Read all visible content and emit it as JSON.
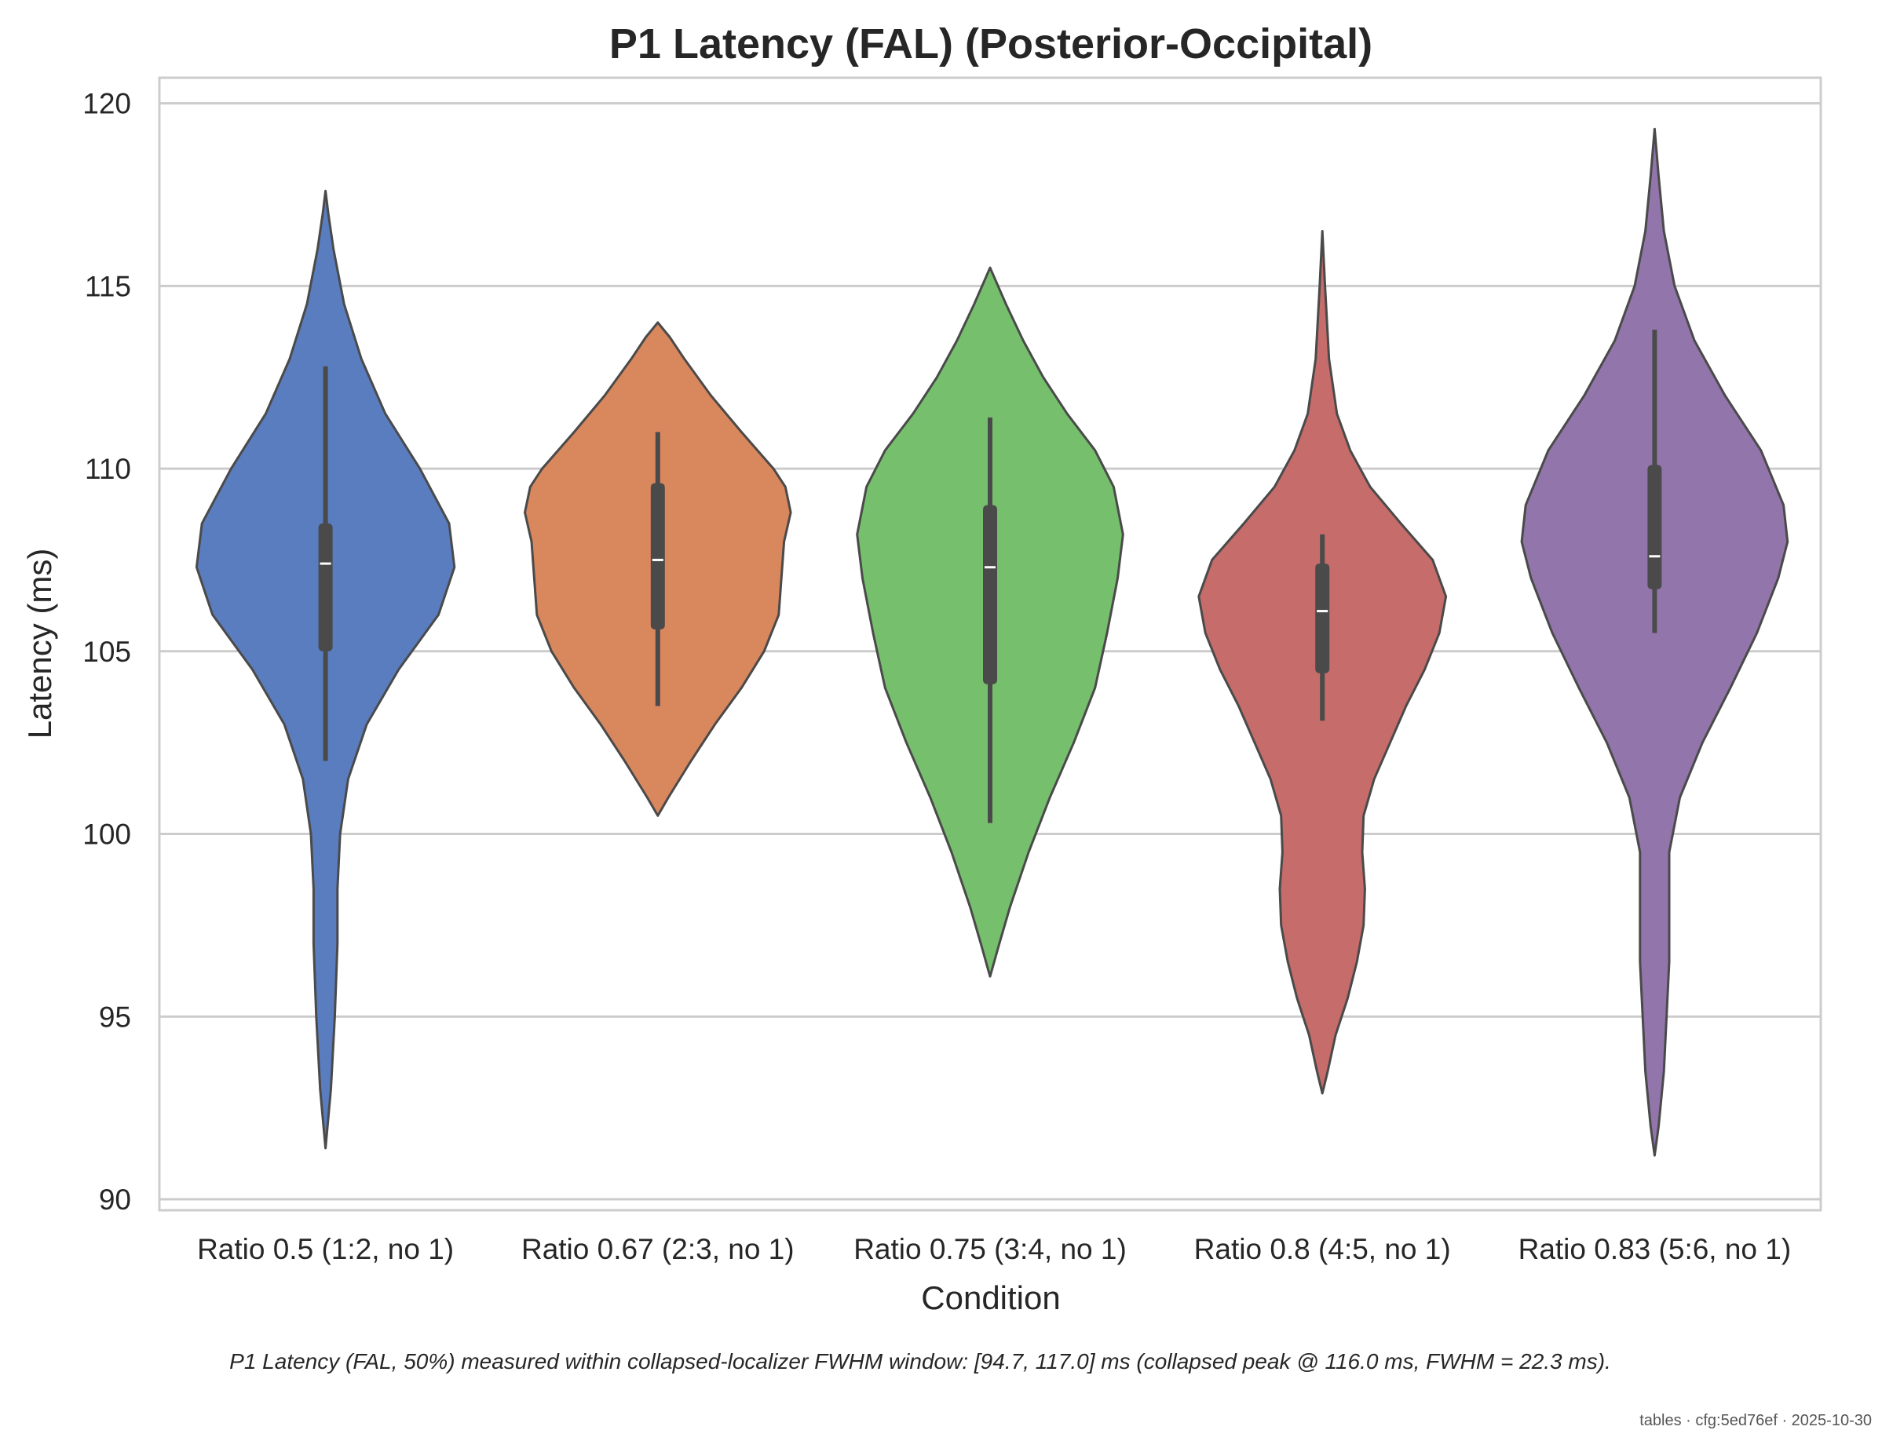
{
  "chart_data": {
    "type": "violin",
    "title": "P1 Latency (FAL) (Posterior-Occipital)",
    "xlabel": "Condition",
    "ylabel": "Latency (ms)",
    "ylim": [
      89.7,
      120.7
    ],
    "yticks": [
      90,
      95,
      100,
      105,
      110,
      115,
      120
    ],
    "grid": "horizontal",
    "categories": [
      "Ratio 0.5 (1:2, no 1)",
      "Ratio 0.67 (2:3, no 1)",
      "Ratio 0.75 (3:4, no 1)",
      "Ratio 0.8 (4:5, no 1)",
      "Ratio 0.83 (5:6, no 1)"
    ],
    "series": [
      {
        "color": "#5a7dc0",
        "kde_min": 91.4,
        "kde_max": 117.6,
        "whisker_low": 102.0,
        "q1": 105.0,
        "median": 107.4,
        "q3": 108.5,
        "whisker_high": 112.8,
        "profile": [
          [
            91.4,
            0.0
          ],
          [
            93.0,
            0.04
          ],
          [
            95.0,
            0.07
          ],
          [
            97.0,
            0.09
          ],
          [
            98.5,
            0.09
          ],
          [
            100.0,
            0.11
          ],
          [
            101.5,
            0.17
          ],
          [
            103.0,
            0.31
          ],
          [
            104.5,
            0.55
          ],
          [
            106.0,
            0.85
          ],
          [
            107.3,
            0.97
          ],
          [
            108.5,
            0.93
          ],
          [
            110.0,
            0.71
          ],
          [
            111.5,
            0.45
          ],
          [
            113.0,
            0.27
          ],
          [
            114.5,
            0.14
          ],
          [
            116.0,
            0.06
          ],
          [
            117.0,
            0.02
          ],
          [
            117.6,
            0.0
          ]
        ]
      },
      {
        "color": "#d9875d",
        "kde_min": 100.5,
        "kde_max": 114.0,
        "whisker_low": 103.5,
        "q1": 105.6,
        "median": 107.5,
        "q3": 109.6,
        "whisker_high": 111.0,
        "profile": [
          [
            100.5,
            0.0
          ],
          [
            101.0,
            0.08
          ],
          [
            102.0,
            0.25
          ],
          [
            103.0,
            0.43
          ],
          [
            104.0,
            0.63
          ],
          [
            105.0,
            0.8
          ],
          [
            106.0,
            0.91
          ],
          [
            107.0,
            0.93
          ],
          [
            108.0,
            0.95
          ],
          [
            108.8,
            1.0
          ],
          [
            109.5,
            0.96
          ],
          [
            110.0,
            0.87
          ],
          [
            111.0,
            0.63
          ],
          [
            112.0,
            0.4
          ],
          [
            113.0,
            0.2
          ],
          [
            113.6,
            0.09
          ],
          [
            114.0,
            0.0
          ]
        ]
      },
      {
        "color": "#76c06d",
        "kde_min": 96.1,
        "kde_max": 115.5,
        "whisker_low": 100.3,
        "q1": 104.1,
        "median": 107.3,
        "q3": 109.0,
        "whisker_high": 111.4,
        "profile": [
          [
            96.1,
            0.0
          ],
          [
            97.0,
            0.07
          ],
          [
            98.0,
            0.15
          ],
          [
            99.5,
            0.29
          ],
          [
            101.0,
            0.45
          ],
          [
            102.5,
            0.63
          ],
          [
            104.0,
            0.79
          ],
          [
            105.5,
            0.88
          ],
          [
            107.0,
            0.96
          ],
          [
            108.2,
            1.0
          ],
          [
            109.5,
            0.93
          ],
          [
            110.5,
            0.79
          ],
          [
            111.5,
            0.58
          ],
          [
            112.5,
            0.4
          ],
          [
            113.5,
            0.25
          ],
          [
            114.5,
            0.12
          ],
          [
            115.5,
            0.0
          ]
        ]
      },
      {
        "color": "#c66c6b",
        "kde_min": 92.9,
        "kde_max": 116.5,
        "whisker_low": 103.1,
        "q1": 104.4,
        "median": 106.1,
        "q3": 107.4,
        "whisker_high": 108.2,
        "profile": [
          [
            92.9,
            0.0
          ],
          [
            93.5,
            0.04
          ],
          [
            94.5,
            0.1
          ],
          [
            95.5,
            0.19
          ],
          [
            96.5,
            0.26
          ],
          [
            97.5,
            0.31
          ],
          [
            98.5,
            0.32
          ],
          [
            99.5,
            0.3
          ],
          [
            100.5,
            0.31
          ],
          [
            101.5,
            0.39
          ],
          [
            102.5,
            0.51
          ],
          [
            103.5,
            0.63
          ],
          [
            104.5,
            0.77
          ],
          [
            105.5,
            0.88
          ],
          [
            106.5,
            0.93
          ],
          [
            107.5,
            0.83
          ],
          [
            108.5,
            0.59
          ],
          [
            109.5,
            0.36
          ],
          [
            110.5,
            0.21
          ],
          [
            111.5,
            0.11
          ],
          [
            113.0,
            0.05
          ],
          [
            115.0,
            0.02
          ],
          [
            116.5,
            0.0
          ]
        ]
      },
      {
        "color": "#9275ab",
        "kde_min": 91.2,
        "kde_max": 119.3,
        "whisker_low": 105.5,
        "q1": 106.7,
        "median": 107.6,
        "q3": 110.1,
        "whisker_high": 113.8,
        "profile": [
          [
            91.2,
            0.0
          ],
          [
            92.0,
            0.03
          ],
          [
            93.5,
            0.07
          ],
          [
            95.0,
            0.09
          ],
          [
            96.5,
            0.11
          ],
          [
            98.0,
            0.11
          ],
          [
            99.5,
            0.11
          ],
          [
            101.0,
            0.19
          ],
          [
            102.5,
            0.36
          ],
          [
            104.0,
            0.57
          ],
          [
            105.5,
            0.77
          ],
          [
            107.0,
            0.93
          ],
          [
            108.0,
            1.0
          ],
          [
            109.0,
            0.97
          ],
          [
            110.5,
            0.8
          ],
          [
            112.0,
            0.53
          ],
          [
            113.5,
            0.3
          ],
          [
            115.0,
            0.15
          ],
          [
            116.5,
            0.07
          ],
          [
            118.0,
            0.03
          ],
          [
            119.3,
            0.0
          ]
        ]
      }
    ]
  },
  "caption": "P1 Latency (FAL, 50%) measured within collapsed-localizer FWHM window: [94.7, 117.0] ms (collapsed peak @ 116.0 ms, FWHM = 22.3 ms).",
  "footer": "tables · cfg:5ed76ef · 2025-10-30"
}
